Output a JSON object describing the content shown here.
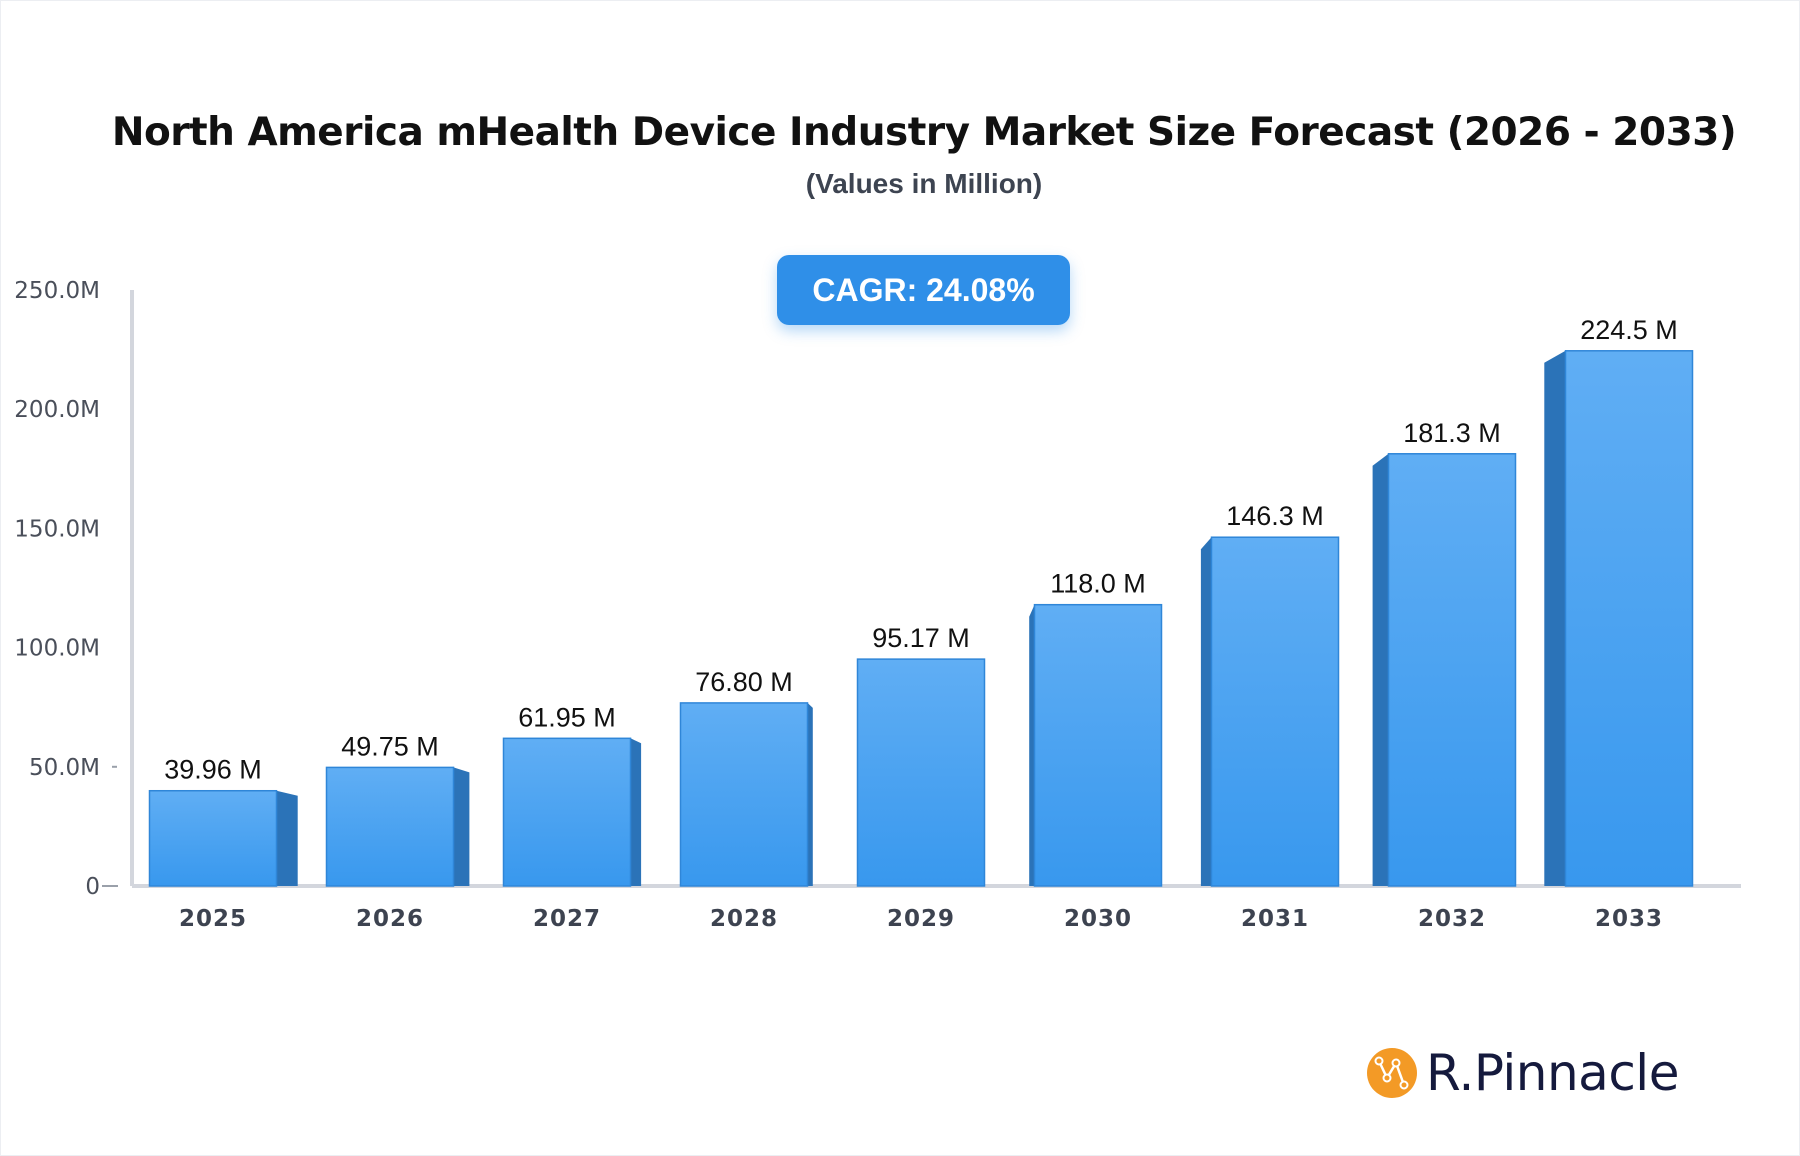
{
  "chart_data": {
    "type": "bar",
    "title": "North America mHealth Device Industry Market Size Forecast (2026 - 2033)",
    "subtitle": "(Values in Million)",
    "annotation": "CAGR: 24.08%",
    "categories": [
      "2025",
      "2026",
      "2027",
      "2028",
      "2029",
      "2030",
      "2031",
      "2032",
      "2033"
    ],
    "values": [
      39.96,
      49.75,
      61.95,
      76.8,
      95.17,
      118.0,
      146.3,
      181.3,
      224.5
    ],
    "data_labels": [
      "39.96 M",
      "49.75 M",
      "61.95 M",
      "76.80 M",
      "95.17 M",
      "118.0 M",
      "146.3 M",
      "181.3 M",
      "224.5 M"
    ],
    "yticks": [
      0,
      50,
      100,
      150,
      200,
      250
    ],
    "ytick_labels": [
      "0",
      "50.0M",
      "100.0M",
      "150.0M",
      "200.0M",
      "250.0M"
    ],
    "ylim": [
      0,
      250
    ],
    "xlabel": "",
    "ylabel": "",
    "grid": false,
    "colors": {
      "bar_top": "#60aef4",
      "bar_bottom": "#3898ee",
      "bar_side": "#2b73b8",
      "accent": "#2f8fe8"
    }
  },
  "brand": {
    "name": "R.Pinnacle",
    "logo_color": "#f39a26"
  }
}
